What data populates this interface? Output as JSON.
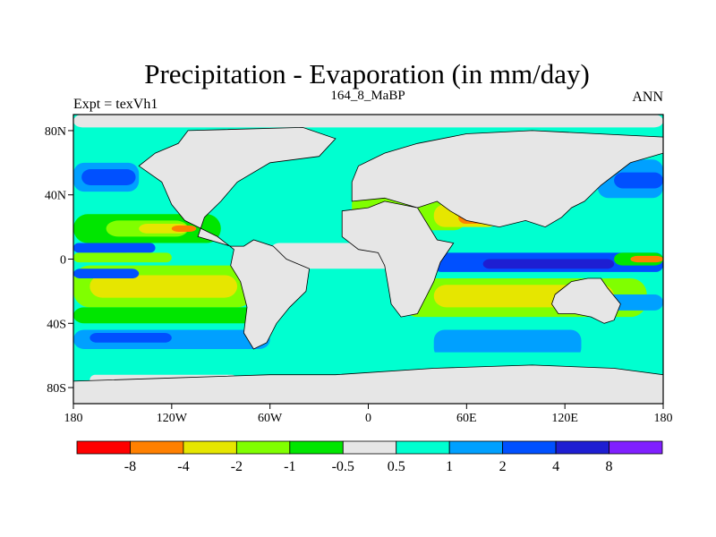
{
  "chart_data": {
    "type": "heatmap",
    "title": "Precipitation - Evaporation (in mm/day)",
    "subtitle_left": "Expt = texVh1",
    "subtitle_center": "164_8_MaBP",
    "subtitle_right": "ANN",
    "x_ticks": [
      {
        "value": -180,
        "label": "180"
      },
      {
        "value": -120,
        "label": "120W"
      },
      {
        "value": -60,
        "label": "60W"
      },
      {
        "value": 0,
        "label": "0"
      },
      {
        "value": 60,
        "label": "60E"
      },
      {
        "value": 120,
        "label": "120E"
      },
      {
        "value": 180,
        "label": "180"
      }
    ],
    "y_ticks": [
      {
        "value": 80,
        "label": "80N"
      },
      {
        "value": 40,
        "label": "40N"
      },
      {
        "value": 0,
        "label": "0"
      },
      {
        "value": -40,
        "label": "40S"
      },
      {
        "value": -80,
        "label": "80S"
      }
    ],
    "xlim": [
      -180,
      180
    ],
    "ylim": [
      -90,
      90
    ],
    "colorbar": {
      "colors": [
        "#ff0000",
        "#ff8000",
        "#e6e600",
        "#80ff00",
        "#00e600",
        "#e6e6e6",
        "#00ffd0",
        "#00a0ff",
        "#0050ff",
        "#1e1ed2",
        "#8020ff"
      ],
      "labels": [
        "-8",
        "-4",
        "-2",
        "-1",
        "-0.5",
        "0.5",
        "1",
        "2",
        "4",
        "8"
      ]
    }
  }
}
